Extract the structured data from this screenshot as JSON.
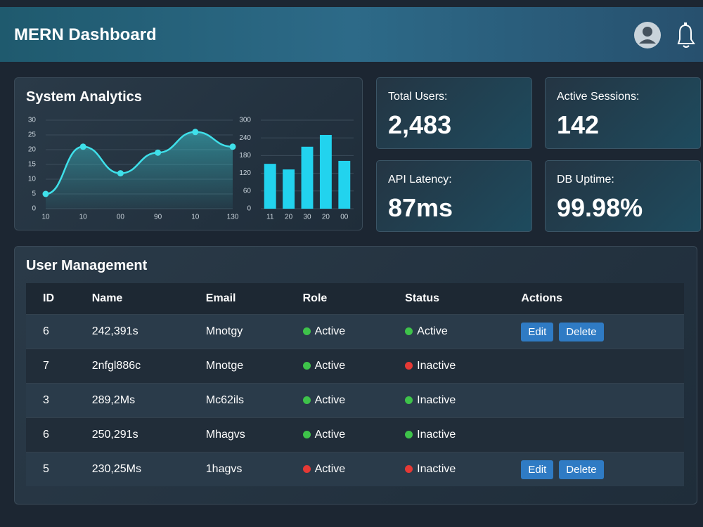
{
  "header": {
    "title": "MERN Dashboard"
  },
  "analytics": {
    "title": "System Analytics",
    "line_chart": {
      "type": "line",
      "categories": [
        "10",
        "10",
        "00",
        "90",
        "10",
        "130"
      ],
      "values": [
        5,
        21,
        12,
        19,
        26,
        21
      ],
      "color": "#3fe0ea",
      "ylim": [
        0,
        30
      ],
      "yticks": [
        0,
        5,
        10,
        15,
        20,
        25,
        30
      ],
      "grid": true
    },
    "bar_chart": {
      "type": "bar",
      "categories": [
        "11",
        "20",
        "30",
        "20",
        "00"
      ],
      "values": [
        152,
        133,
        210,
        250,
        162
      ],
      "color": "#22d3ee",
      "ylim": [
        0,
        300
      ],
      "yticks": [
        0,
        60,
        120,
        180,
        240,
        300
      ],
      "grid": true
    }
  },
  "stats": [
    {
      "label": "Total Users:",
      "value": "2,483"
    },
    {
      "label": "Active Sessions:",
      "value": "142"
    },
    {
      "label": "API Latency:",
      "value": "87ms"
    },
    {
      "label": "DB Uptime:",
      "value": "99.98%"
    }
  ],
  "users": {
    "title": "User Management",
    "columns": [
      "ID",
      "Name",
      "Email",
      "Role",
      "Status",
      "Actions"
    ],
    "rows": [
      {
        "id": "6",
        "name": "242,391s",
        "email": "Mnotgy",
        "role": "Active",
        "role_color": "#3ec34a",
        "status": "Active",
        "status_color": "#3ec34a",
        "actions": [
          "Edit",
          "Delete"
        ]
      },
      {
        "id": "7",
        "name": "2nfgl886c",
        "email": "Mnotge",
        "role": "Active",
        "role_color": "#3ec34a",
        "status": "Inactive",
        "status_color": "#e53935",
        "actions": []
      },
      {
        "id": "3",
        "name": "289,2Ms",
        "email": "Mc62ils",
        "role": "Active",
        "role_color": "#3ec34a",
        "status": "Inactive",
        "status_color": "#3ec34a",
        "actions": []
      },
      {
        "id": "6",
        "name": "250,291s",
        "email": "Mhagvs",
        "role": "Active",
        "role_color": "#3ec34a",
        "status": "Inactive",
        "status_color": "#3ec34a",
        "actions": []
      },
      {
        "id": "5",
        "name": "230,25Ms",
        "email": "1hagvs",
        "role": "Active",
        "role_color": "#e53935",
        "status": "Inactive",
        "status_color": "#e53935",
        "actions": [
          "Edit",
          "Delete"
        ]
      }
    ]
  }
}
